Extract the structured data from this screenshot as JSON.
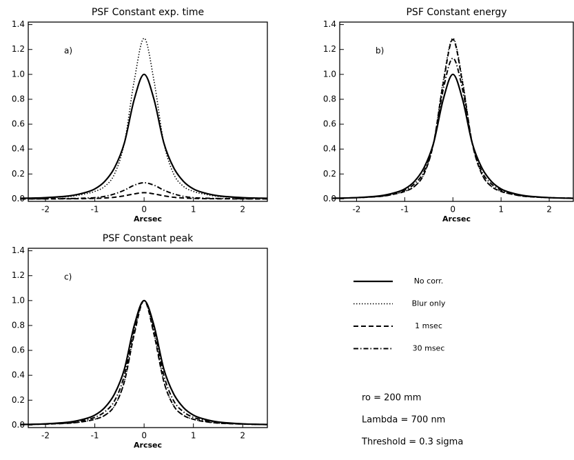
{
  "chart_data": [
    {
      "type": "line",
      "title": "PSF Constant exp. time",
      "panel_label": "a)",
      "x_label": "Arcsec",
      "x": [
        -2.5,
        -2,
        -1.5,
        -1.2,
        -1,
        -0.8,
        -0.6,
        -0.4,
        -0.2,
        0,
        0.2,
        0.4,
        0.6,
        0.8,
        1,
        1.2,
        1.5,
        2,
        2.5
      ],
      "xlim": [
        -2.35,
        2.5
      ],
      "xticks": [
        -2,
        -1,
        0,
        1,
        2
      ],
      "ylim": [
        -0.02,
        1.42
      ],
      "yticks": [
        {
          "value": 0,
          "label": "0.0"
        },
        0.2,
        0.4,
        0.6,
        0.8,
        {
          "value": 1,
          "label": "1.0"
        },
        1.2,
        1.4
      ],
      "series": [
        {
          "name": "No corr.",
          "color": "#000000",
          "dash": "solid",
          "values": [
            0.005,
            0.01,
            0.025,
            0.05,
            0.08,
            0.14,
            0.25,
            0.45,
            0.8,
            1.0,
            0.8,
            0.45,
            0.25,
            0.14,
            0.08,
            0.05,
            0.025,
            0.01,
            0.005
          ]
        },
        {
          "name": "Blur only",
          "color": "#000000",
          "dash": "dotted",
          "values": [
            0.005,
            0.01,
            0.02,
            0.04,
            0.06,
            0.1,
            0.2,
            0.45,
            0.95,
            1.29,
            0.95,
            0.45,
            0.2,
            0.1,
            0.06,
            0.04,
            0.02,
            0.01,
            0.005
          ]
        },
        {
          "name": "1 msec",
          "color": "#000000",
          "dash": "dashed",
          "values": [
            0,
            0,
            0.001,
            0.002,
            0.004,
            0.007,
            0.013,
            0.025,
            0.04,
            0.05,
            0.04,
            0.025,
            0.013,
            0.007,
            0.004,
            0.002,
            0.001,
            0,
            0
          ]
        },
        {
          "name": "30 msec",
          "color": "#000000",
          "dash": "dashdot",
          "values": [
            0,
            0.001,
            0.003,
            0.006,
            0.01,
            0.02,
            0.04,
            0.07,
            0.11,
            0.13,
            0.11,
            0.07,
            0.04,
            0.02,
            0.01,
            0.006,
            0.003,
            0.001,
            0
          ]
        }
      ]
    },
    {
      "type": "line",
      "title": "PSF Constant energy",
      "panel_label": "b)",
      "x_label": "Arcsec",
      "x": [
        -2.5,
        -2,
        -1.5,
        -1.2,
        -1,
        -0.8,
        -0.6,
        -0.4,
        -0.2,
        0,
        0.2,
        0.4,
        0.6,
        0.8,
        1,
        1.2,
        1.5,
        2,
        2.5
      ],
      "xlim": [
        -2.35,
        2.5
      ],
      "xticks": [
        -2,
        -1,
        0,
        1,
        2
      ],
      "ylim": [
        -0.02,
        1.42
      ],
      "yticks": [
        {
          "value": 0,
          "label": "0.0"
        },
        0.2,
        0.4,
        0.6,
        0.8,
        {
          "value": 1,
          "label": "1.0"
        },
        1.2,
        1.4
      ],
      "series": [
        {
          "name": "No corr.",
          "color": "#000000",
          "dash": "solid",
          "values": [
            0.005,
            0.01,
            0.025,
            0.05,
            0.08,
            0.14,
            0.25,
            0.45,
            0.8,
            1.0,
            0.8,
            0.45,
            0.25,
            0.14,
            0.08,
            0.05,
            0.025,
            0.01,
            0.005
          ]
        },
        {
          "name": "Blur only",
          "color": "#000000",
          "dash": "dotted",
          "values": [
            0.005,
            0.01,
            0.02,
            0.04,
            0.06,
            0.1,
            0.2,
            0.45,
            0.95,
            1.29,
            0.95,
            0.45,
            0.2,
            0.1,
            0.06,
            0.04,
            0.02,
            0.01,
            0.005
          ]
        },
        {
          "name": "1 msec",
          "color": "#000000",
          "dash": "dashed",
          "values": [
            0.005,
            0.01,
            0.02,
            0.04,
            0.06,
            0.1,
            0.2,
            0.45,
            0.93,
            1.28,
            0.93,
            0.45,
            0.2,
            0.1,
            0.06,
            0.04,
            0.02,
            0.01,
            0.005
          ]
        },
        {
          "name": "30 msec",
          "color": "#000000",
          "dash": "dashdot",
          "values": [
            0.005,
            0.01,
            0.022,
            0.045,
            0.07,
            0.12,
            0.22,
            0.45,
            0.88,
            1.13,
            0.88,
            0.45,
            0.22,
            0.12,
            0.07,
            0.045,
            0.022,
            0.01,
            0.005
          ]
        }
      ]
    },
    {
      "type": "line",
      "title": "PSF Constant peak",
      "panel_label": "c)",
      "x_label": "Arcsec",
      "x": [
        -2.5,
        -2,
        -1.5,
        -1.2,
        -1,
        -0.8,
        -0.6,
        -0.4,
        -0.2,
        0,
        0.2,
        0.4,
        0.6,
        0.8,
        1,
        1.2,
        1.5,
        2,
        2.5
      ],
      "xlim": [
        -2.35,
        2.5
      ],
      "xticks": [
        -2,
        -1,
        0,
        1,
        2
      ],
      "ylim": [
        -0.02,
        1.42
      ],
      "yticks": [
        {
          "value": 0,
          "label": "0.0"
        },
        0.2,
        0.4,
        0.6,
        0.8,
        {
          "value": 1,
          "label": "1.0"
        },
        1.2,
        1.4
      ],
      "legend": "outside-right",
      "series": [
        {
          "name": "No corr.",
          "color": "#000000",
          "dash": "solid",
          "values": [
            0.005,
            0.01,
            0.025,
            0.05,
            0.08,
            0.14,
            0.25,
            0.45,
            0.8,
            1.0,
            0.8,
            0.45,
            0.25,
            0.14,
            0.08,
            0.05,
            0.025,
            0.01,
            0.005
          ]
        },
        {
          "name": "Blur only",
          "color": "#000000",
          "dash": "dotted",
          "values": [
            0.004,
            0.008,
            0.016,
            0.03,
            0.047,
            0.078,
            0.155,
            0.35,
            0.74,
            1.0,
            0.74,
            0.35,
            0.155,
            0.078,
            0.047,
            0.03,
            0.016,
            0.008,
            0.004
          ]
        },
        {
          "name": "1 msec",
          "color": "#000000",
          "dash": "dashed",
          "values": [
            0.004,
            0.008,
            0.016,
            0.03,
            0.047,
            0.078,
            0.155,
            0.35,
            0.73,
            1.0,
            0.73,
            0.35,
            0.155,
            0.078,
            0.047,
            0.03,
            0.016,
            0.008,
            0.004
          ]
        },
        {
          "name": "30 msec",
          "color": "#000000",
          "dash": "dashdot",
          "values": [
            0.004,
            0.009,
            0.019,
            0.04,
            0.062,
            0.106,
            0.195,
            0.4,
            0.78,
            1.0,
            0.78,
            0.4,
            0.195,
            0.106,
            0.062,
            0.04,
            0.019,
            0.009,
            0.004
          ]
        }
      ]
    }
  ],
  "annotations": [
    "ro = 200 mm",
    "Lambda = 700 nm",
    "Threshold = 0.3 sigma"
  ]
}
